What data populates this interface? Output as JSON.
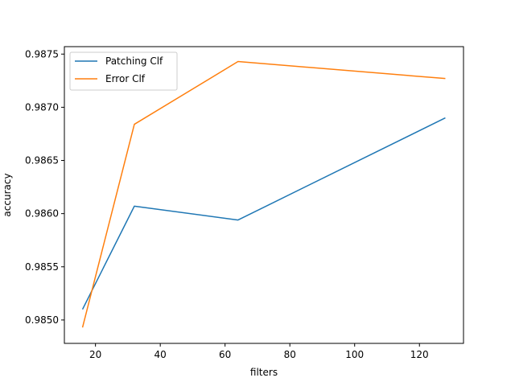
{
  "chart_data": {
    "type": "line",
    "title": "",
    "xlabel": "filters",
    "ylabel": "accuracy",
    "xlim": [
      10.4,
      133.6
    ],
    "ylim": [
      0.98478,
      0.98757
    ],
    "x_ticks": [
      20,
      40,
      60,
      80,
      100,
      120
    ],
    "x_tick_labels": [
      "20",
      "40",
      "60",
      "80",
      "100",
      "120"
    ],
    "y_ticks": [
      0.985,
      0.9855,
      0.986,
      0.9865,
      0.987,
      0.9875
    ],
    "y_tick_labels": [
      "0.9850",
      "0.9855",
      "0.9860",
      "0.9865",
      "0.9870",
      "0.9875"
    ],
    "grid": false,
    "legend_position": "top-left",
    "x": [
      16,
      32,
      64,
      128
    ],
    "series": [
      {
        "name": "Patching Clf",
        "color": "#1f77b4",
        "values": [
          0.9851,
          0.98607,
          0.98594,
          0.9869
        ]
      },
      {
        "name": "Error Clf",
        "color": "#ff7f0e",
        "values": [
          0.98493,
          0.98684,
          0.98743,
          0.98727
        ]
      }
    ]
  }
}
